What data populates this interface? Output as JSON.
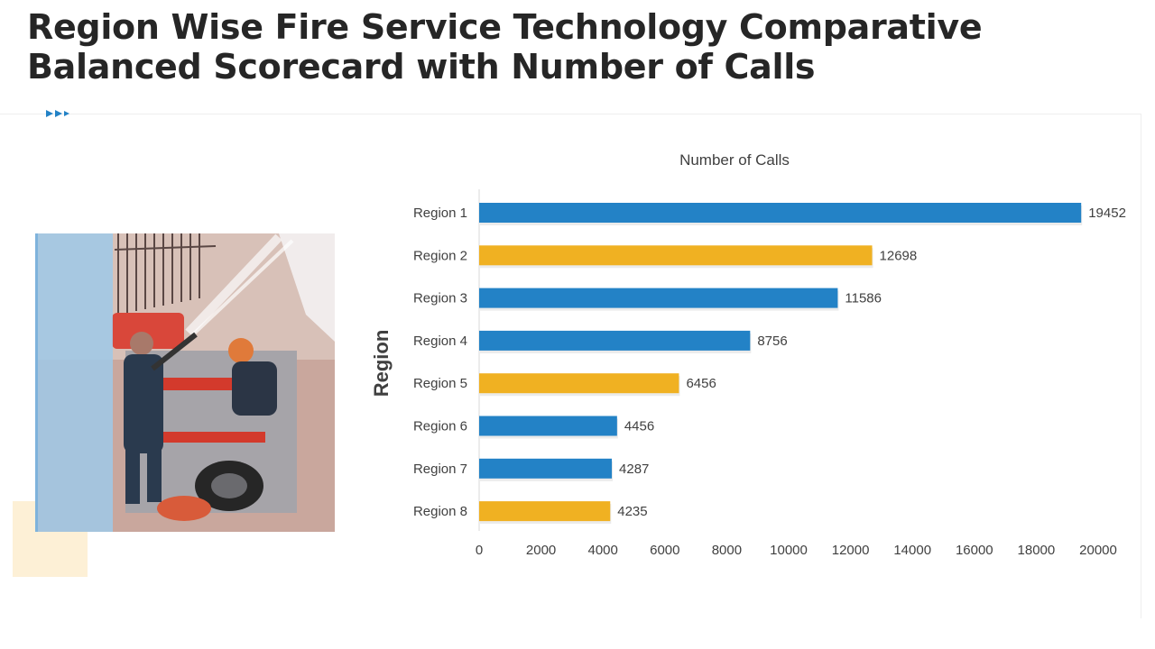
{
  "slide": {
    "title": "Region Wise Fire Service Technology Comparative Balanced Scorecard with Number of Calls"
  },
  "icons": {
    "header_arrows": "triple-play-arrows-icon"
  },
  "colors": {
    "blue": "#2382C6",
    "gold": "#F0B122",
    "title": "#262626",
    "cream": "#FDF0D6"
  },
  "chart_data": {
    "type": "bar",
    "orientation": "horizontal",
    "title": "Number of Calls",
    "xlabel": "",
    "ylabel": "Region",
    "categories": [
      "Region 1",
      "Region 2",
      "Region 3",
      "Region 4",
      "Region 5",
      "Region 6",
      "Region 7",
      "Region 8"
    ],
    "values": [
      19452,
      12698,
      11586,
      8756,
      6456,
      4456,
      4287,
      4235
    ],
    "bar_colors": [
      "#2382C6",
      "#F0B122",
      "#2382C6",
      "#2382C6",
      "#F0B122",
      "#2382C6",
      "#2382C6",
      "#F0B122"
    ],
    "xlim": [
      0,
      20000
    ],
    "xticks": [
      0,
      2000,
      4000,
      6000,
      8000,
      10000,
      12000,
      14000,
      16000,
      18000,
      20000
    ],
    "grid": false,
    "data_labels": true
  }
}
